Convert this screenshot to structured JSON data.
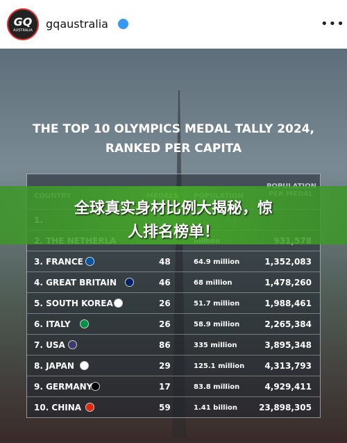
{
  "header": {
    "logo_main": "GQ",
    "logo_sub": "AUSTRALIA",
    "account": "gqaustralia"
  },
  "post": {
    "title_line1": "THE TOP 10 OLYMPICS MEDAL TALLY 2024,",
    "title_line2": "RANKED PER CAPITA",
    "banner_line1": "全球真实身材比例大揭秘，惊",
    "banner_line2": "人排名榜单！",
    "table": {
      "columns": [
        "COUNTRY",
        "MEDALS",
        "POPULATION",
        "POPULATION PER MEDAL"
      ],
      "rows": [
        {
          "country": "1."
        },
        {
          "country": "2. THE NETHERLA",
          "population": "million",
          "per_medal": "931,578"
        },
        {
          "country": "3. FRANCE",
          "medals": "48",
          "population": "64.9 million",
          "per_medal": "1,352,083"
        },
        {
          "country": "4. GREAT BRITAIN",
          "medals": "46",
          "population": "68 million",
          "per_medal": "1,478,260"
        },
        {
          "country": "5. SOUTH KOREA",
          "medals": "26",
          "population": "51.7 million",
          "per_medal": "1,988,461"
        },
        {
          "country": "6. ITALY",
          "medals": "26",
          "population": "58.9 million",
          "per_medal": "2,265,384"
        },
        {
          "country": "7. USA",
          "medals": "86",
          "population": "335 million",
          "per_medal": "3,895,348"
        },
        {
          "country": "8. JAPAN",
          "medals": "29",
          "population": "125.1 million",
          "per_medal": "4,313,793"
        },
        {
          "country": "9. GERMANY",
          "medals": "17",
          "population": "83.8 million",
          "per_medal": "4,929,411"
        },
        {
          "country": "10. CHINA",
          "medals": "59",
          "population": "1.41 billion",
          "per_medal": "23,898,305"
        }
      ]
    }
  }
}
